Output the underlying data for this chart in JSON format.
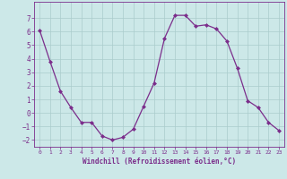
{
  "x": [
    0,
    1,
    2,
    3,
    4,
    5,
    6,
    7,
    8,
    9,
    10,
    11,
    12,
    13,
    14,
    15,
    16,
    17,
    18,
    19,
    20,
    21,
    22,
    23
  ],
  "y": [
    6.1,
    3.8,
    1.6,
    0.4,
    -0.7,
    -0.7,
    -1.7,
    -2.0,
    -1.8,
    -1.2,
    0.5,
    2.2,
    5.5,
    7.2,
    7.2,
    6.4,
    6.5,
    6.2,
    5.3,
    3.3,
    0.9,
    0.4,
    -0.7,
    -1.3
  ],
  "line_color": "#7b2d8b",
  "marker": "D",
  "marker_size": 2,
  "bg_color": "#cce8e8",
  "grid_color": "#aacccc",
  "xlabel": "Windchill (Refroidissement éolien,°C)",
  "xlabel_color": "#7b2d8b",
  "tick_color": "#7b2d8b",
  "ylim": [
    -2.5,
    8.2
  ],
  "yticks": [
    -2,
    -1,
    0,
    1,
    2,
    3,
    4,
    5,
    6,
    7
  ],
  "xlim": [
    -0.5,
    23.5
  ],
  "xticks": [
    0,
    1,
    2,
    3,
    4,
    5,
    6,
    7,
    8,
    9,
    10,
    11,
    12,
    13,
    14,
    15,
    16,
    17,
    18,
    19,
    20,
    21,
    22,
    23
  ]
}
